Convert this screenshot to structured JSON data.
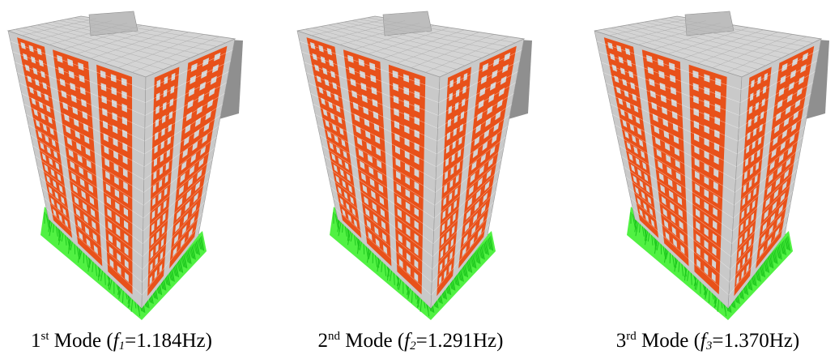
{
  "modes": [
    {
      "number": "1",
      "ordinal_suffix": "st",
      "label": "Mode",
      "symbol": "f",
      "subscript": "1",
      "frequency": "1.184Hz"
    },
    {
      "number": "2",
      "ordinal_suffix": "nd",
      "label": "Mode",
      "symbol": "f",
      "subscript": "2",
      "frequency": "1.291Hz"
    },
    {
      "number": "3",
      "ordinal_suffix": "rd",
      "label": "Mode",
      "symbol": "f",
      "subscript": "3",
      "frequency": "1.370Hz"
    }
  ],
  "colors": {
    "facade": "#e8511a",
    "mesh": "#c9c9c9",
    "slab": "#d4d4d4",
    "base": "#33ee22",
    "shadow": "#6a6a6a"
  }
}
